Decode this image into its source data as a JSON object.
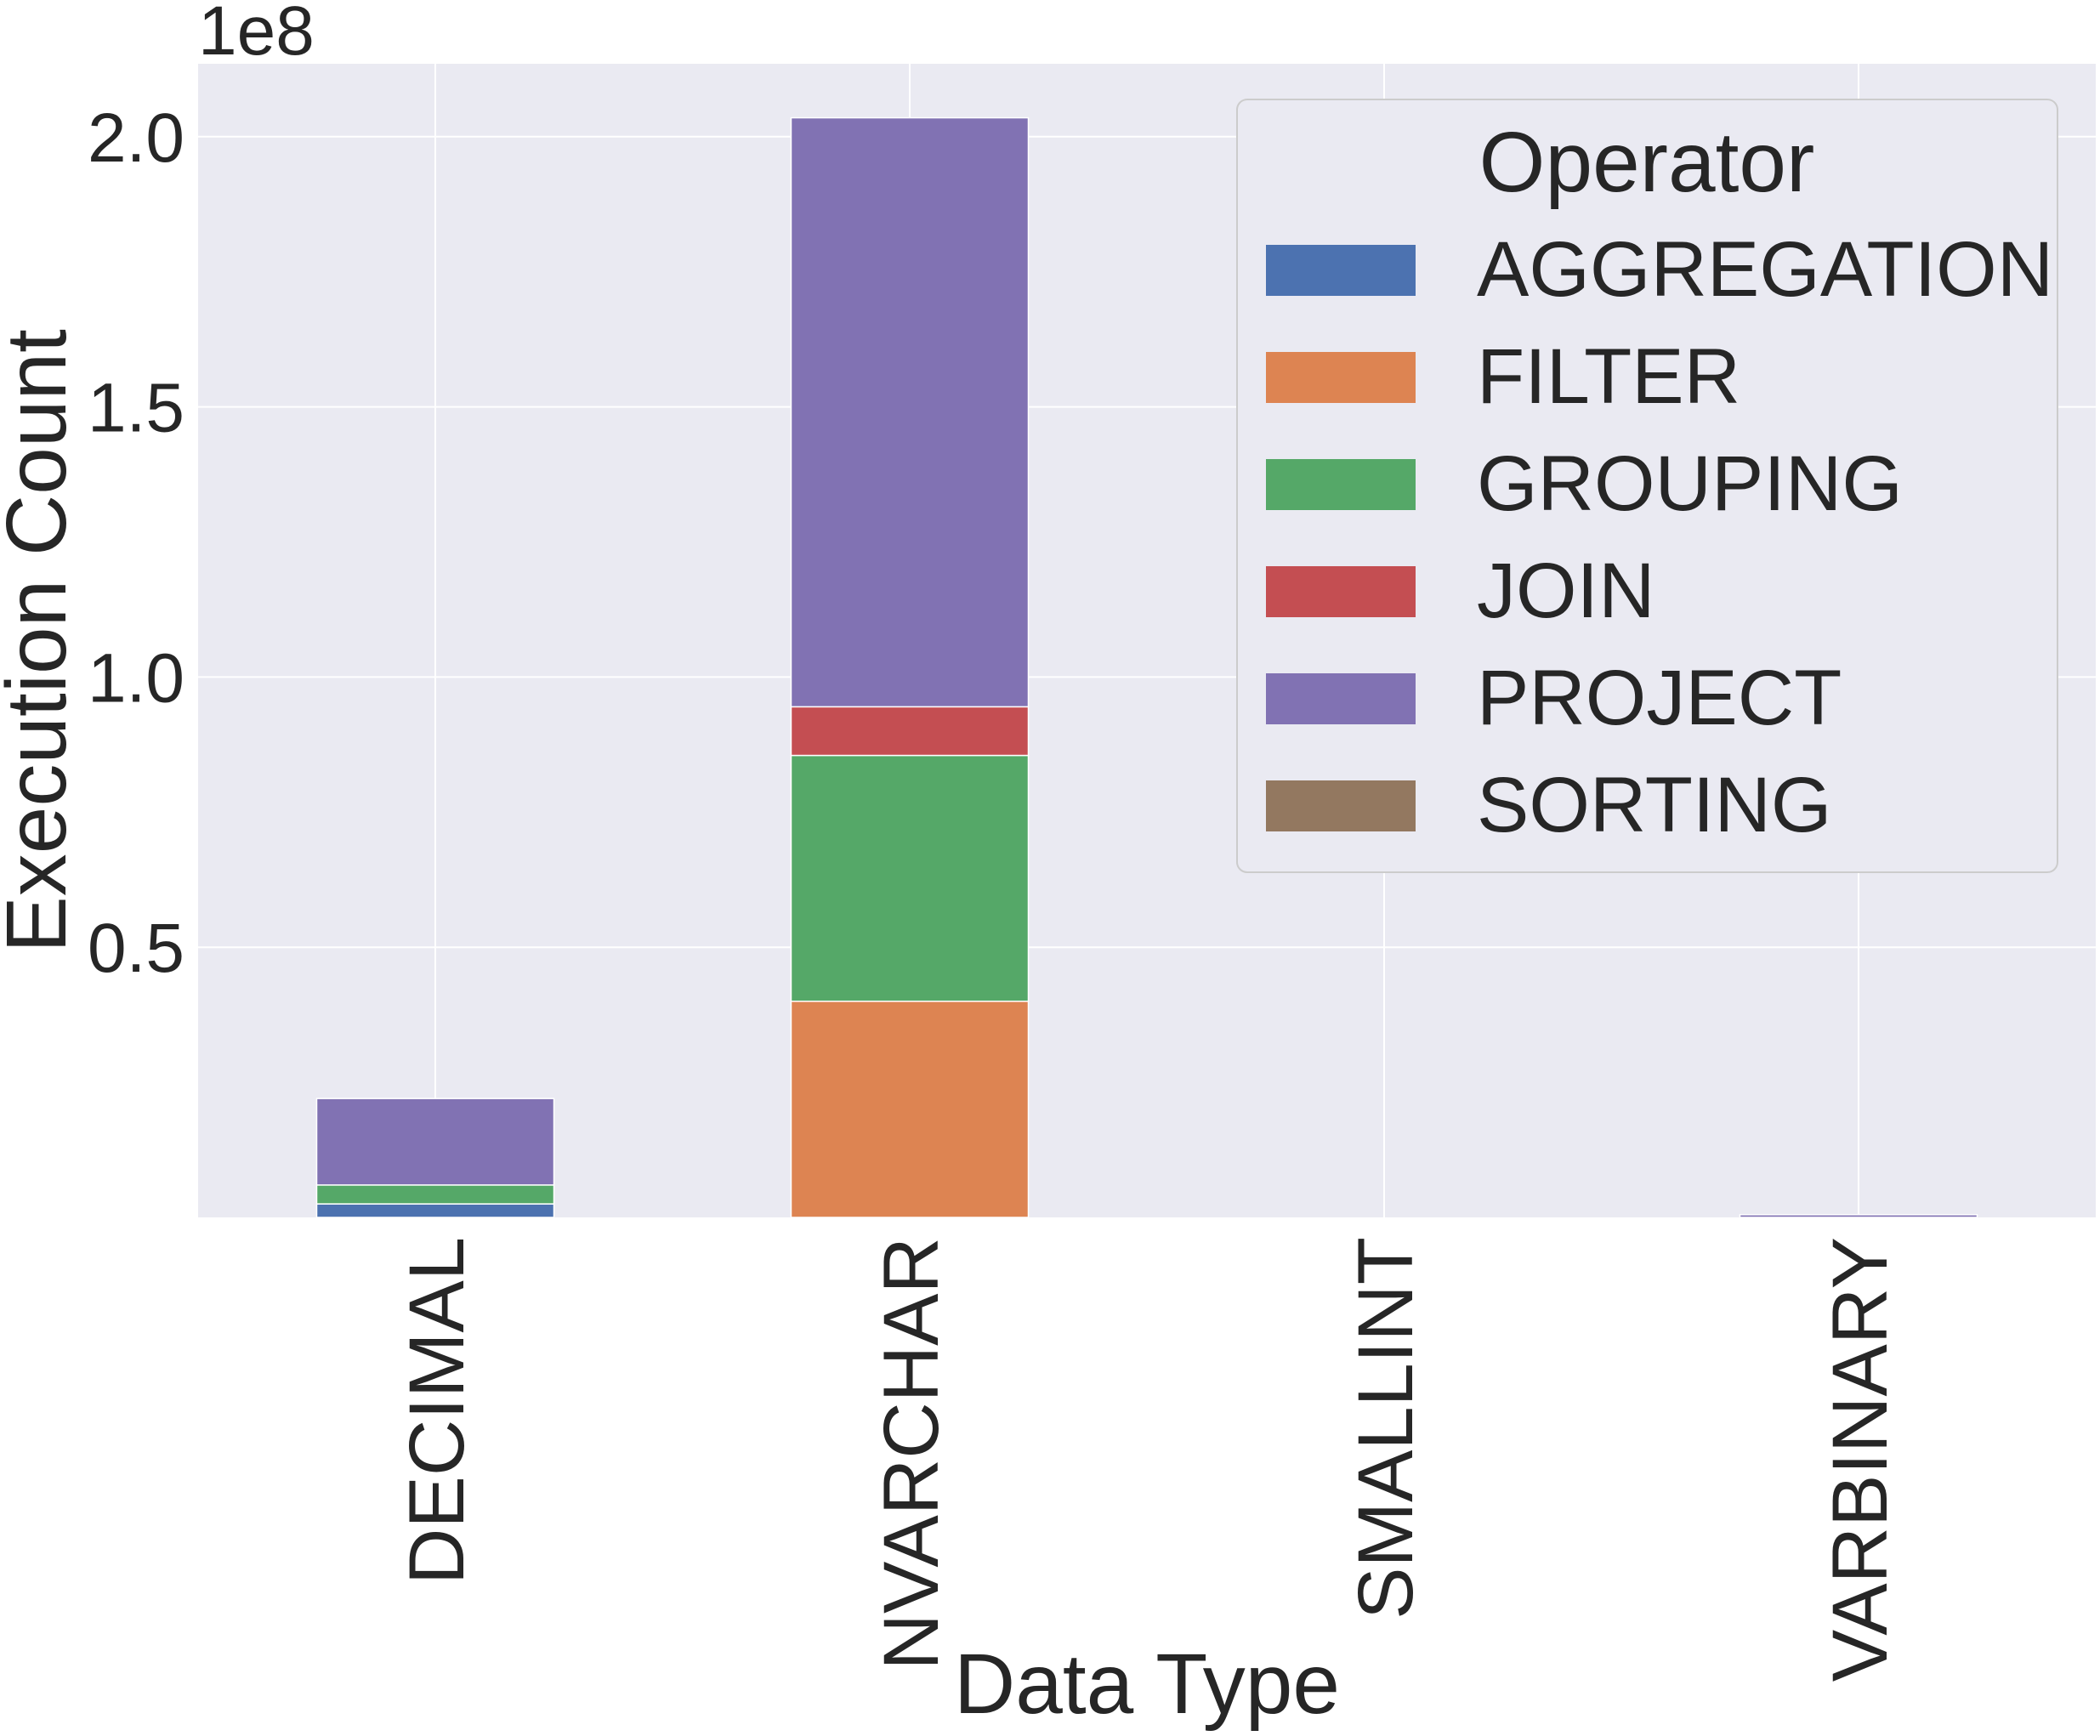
{
  "chart_data": {
    "type": "bar",
    "stacked": true,
    "categories": [
      "DECIMAL",
      "NVARCHAR",
      "SMALLINT",
      "VARBINARY"
    ],
    "offset_text": "1e8",
    "xlabel": "Data Type",
    "ylabel": "Execution Count",
    "ylim": [
      0,
      2.135
    ],
    "yticks": [
      0.5,
      1.0,
      1.5,
      2.0
    ],
    "ytick_labels": [
      "0.5",
      "1.0",
      "1.5",
      "2.0"
    ],
    "grid": true,
    "legend": {
      "title": "Operator",
      "placement": "upper right"
    },
    "series": [
      {
        "name": "AGGREGATION",
        "color": "#4c72b0",
        "values": [
          0.025,
          0.0,
          0.0,
          0.0
        ]
      },
      {
        "name": "FILTER",
        "color": "#dd8452",
        "values": [
          0.0,
          0.4,
          0.0,
          0.0
        ]
      },
      {
        "name": "GROUPING",
        "color": "#55a868",
        "values": [
          0.035,
          0.455,
          0.0,
          0.0
        ]
      },
      {
        "name": "JOIN",
        "color": "#c44e52",
        "values": [
          0.0,
          0.09,
          0.0,
          0.0
        ]
      },
      {
        "name": "PROJECT",
        "color": "#8172b3",
        "values": [
          0.16,
          1.09,
          0.0,
          0.005
        ]
      },
      {
        "name": "SORTING",
        "color": "#937860",
        "values": [
          0.0,
          0.0,
          0.0,
          0.0
        ]
      }
    ]
  }
}
